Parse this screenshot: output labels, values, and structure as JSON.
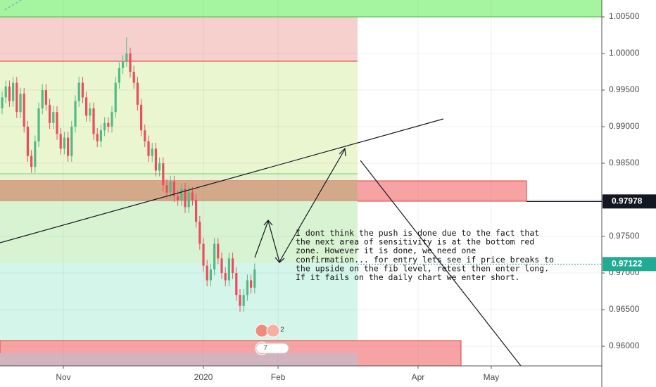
{
  "chart_data": {
    "type": "candlestick",
    "up_color": "#53b987",
    "down_color": "#eb4d5c",
    "xlim": [
      -0.58,
      163.85
    ],
    "ylim": [
      0.95731,
      1.00731
    ],
    "yticks": [
      {
        "value": 0.96,
        "label": "0.96000"
      },
      {
        "value": 0.965,
        "label": "0.96500"
      },
      {
        "value": 0.97,
        "label": "0.97000"
      },
      {
        "value": 0.975,
        "label": "0.97500"
      },
      {
        "value": 0.98,
        "label": "0.98000"
      },
      {
        "value": 0.985,
        "label": "0.98500"
      },
      {
        "value": 0.99,
        "label": "0.99000"
      },
      {
        "value": 0.995,
        "label": "0.99500"
      },
      {
        "value": 1.0,
        "label": "1.00000"
      },
      {
        "value": 1.005,
        "label": "1.00500"
      }
    ],
    "xticks": [
      {
        "value": 16.73,
        "label": "Nov"
      },
      {
        "value": 55,
        "label": "2020"
      },
      {
        "value": 75.4,
        "label": "Feb"
      },
      {
        "value": 113.65,
        "label": "Apr"
      },
      {
        "value": 133.65,
        "label": "May"
      }
    ],
    "grid": true,
    "open": [
      0.9925,
      0.994,
      0.9955,
      0.9935,
      0.996,
      0.992,
      0.9945,
      0.99,
      0.986,
      0.9845,
      0.988,
      0.9925,
      0.995,
      0.993,
      0.9905,
      0.992,
      0.989,
      0.987,
      0.9885,
      0.986,
      0.99,
      0.9935,
      0.996,
      0.994,
      0.9915,
      0.9925,
      0.989,
      0.988,
      0.9895,
      0.9905,
      0.99,
      0.992,
      0.996,
      0.998,
      0.999,
      1.0,
      0.9975,
      0.996,
      0.993,
      0.9895,
      0.988,
      0.986,
      0.987,
      0.984,
      0.985,
      0.982,
      0.981,
      0.9825,
      0.9805,
      0.98,
      0.9815,
      0.979,
      0.981,
      0.98,
      0.977,
      0.974,
      0.971,
      0.969,
      0.9705,
      0.974,
      0.972,
      0.97,
      0.969,
      0.972,
      0.97,
      0.967,
      0.9655,
      0.967,
      0.969,
      0.968
    ],
    "high": [
      0.9948,
      0.9963,
      0.9963,
      0.9968,
      0.9968,
      0.9953,
      0.9953,
      0.9908,
      0.9868,
      0.9888,
      0.9933,
      0.9958,
      0.9958,
      0.9938,
      0.9928,
      0.9928,
      0.9898,
      0.9893,
      0.9893,
      0.9908,
      0.9943,
      0.9968,
      0.9968,
      0.9948,
      0.9933,
      0.9933,
      0.9898,
      0.9903,
      0.9913,
      0.9913,
      0.9928,
      0.9968,
      0.9988,
      0.9998,
      1.0022,
      1.0008,
      0.9983,
      0.9968,
      0.9938,
      0.9903,
      0.9888,
      0.9878,
      0.9878,
      0.9858,
      0.9858,
      0.9828,
      0.9833,
      0.9833,
      0.9813,
      0.9823,
      0.9823,
      0.9818,
      0.9818,
      0.9808,
      0.9778,
      0.9748,
      0.9718,
      0.9713,
      0.9748,
      0.9748,
      0.9728,
      0.9708,
      0.9728,
      0.9728,
      0.9708,
      0.9678,
      0.9678,
      0.9698,
      0.9698,
      0.9713
    ],
    "low": [
      0.9917,
      0.9932,
      0.9927,
      0.9927,
      0.9912,
      0.9912,
      0.9892,
      0.9852,
      0.9837,
      0.9837,
      0.9872,
      0.9917,
      0.9922,
      0.9897,
      0.9897,
      0.9882,
      0.9862,
      0.9862,
      0.9852,
      0.9852,
      0.9892,
      0.9927,
      0.9932,
      0.9907,
      0.9907,
      0.9882,
      0.9872,
      0.9872,
      0.9887,
      0.9892,
      0.9892,
      0.9912,
      0.9952,
      0.9972,
      0.9982,
      0.9967,
      0.9952,
      0.9922,
      0.9887,
      0.9872,
      0.9852,
      0.9852,
      0.9832,
      0.9832,
      0.9812,
      0.9802,
      0.9802,
      0.9797,
      0.9792,
      0.9792,
      0.9782,
      0.9782,
      0.9792,
      0.9762,
      0.9732,
      0.9702,
      0.9682,
      0.9682,
      0.9697,
      0.9712,
      0.9692,
      0.9682,
      0.9682,
      0.9692,
      0.9662,
      0.9647,
      0.9647,
      0.9662,
      0.9672,
      0.9672
    ],
    "close": [
      0.994,
      0.9955,
      0.9935,
      0.996,
      0.992,
      0.9945,
      0.99,
      0.986,
      0.9845,
      0.988,
      0.9925,
      0.995,
      0.993,
      0.9905,
      0.992,
      0.989,
      0.987,
      0.9885,
      0.986,
      0.99,
      0.9935,
      0.996,
      0.994,
      0.9915,
      0.9925,
      0.989,
      0.988,
      0.9895,
      0.9905,
      0.99,
      0.992,
      0.996,
      0.998,
      0.999,
      1.0,
      0.9975,
      0.996,
      0.993,
      0.9895,
      0.988,
      0.986,
      0.987,
      0.984,
      0.985,
      0.982,
      0.981,
      0.9825,
      0.9805,
      0.98,
      0.9815,
      0.979,
      0.981,
      0.98,
      0.977,
      0.974,
      0.971,
      0.969,
      0.9705,
      0.974,
      0.972,
      0.97,
      0.969,
      0.972,
      0.97,
      0.967,
      0.9655,
      0.967,
      0.969,
      0.968,
      0.9705
    ],
    "price_lines": [
      {
        "value": 0.97978,
        "label": "0.97978",
        "color": "#131722",
        "style": "solid"
      },
      {
        "value": 0.97122,
        "label": "0.97122",
        "color": "#22ab94",
        "style": "dotted"
      }
    ],
    "annotation": [
      "I dont think the push is done due to the fact that",
      "the next area of sensitivity is at the bottom red",
      "zone. However it is done, we need one",
      "confirmation... for entry lets see if price breaks to",
      "the upside on the fib level, retest then enter long.",
      "If it fails on the daily chart we enter short."
    ],
    "event_badges": [
      "2",
      "7"
    ]
  }
}
